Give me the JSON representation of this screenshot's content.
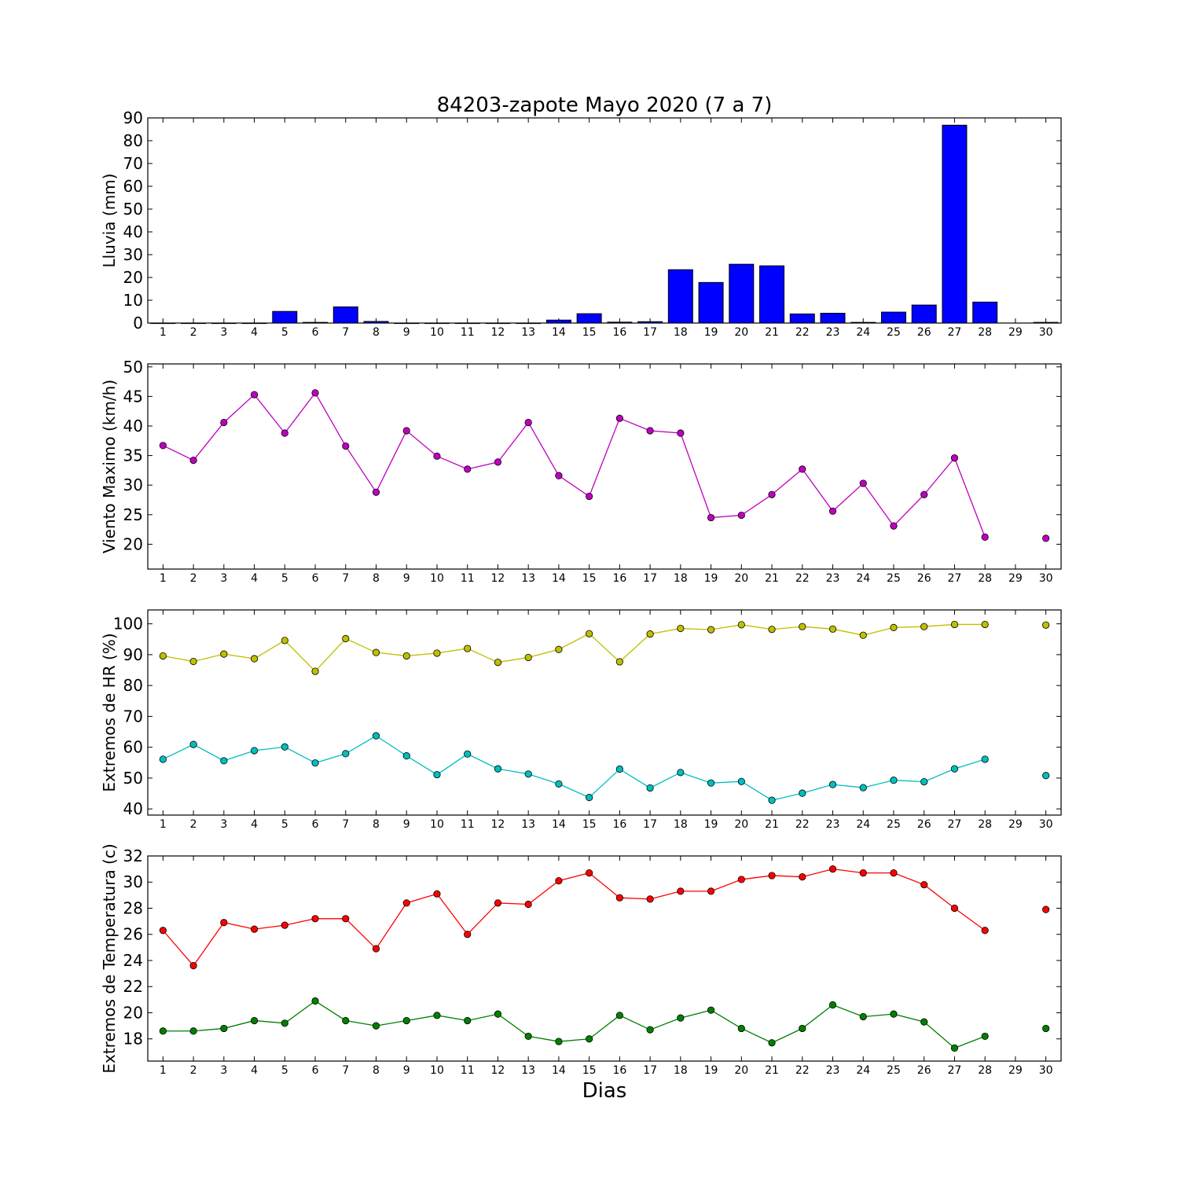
{
  "figure": {
    "title": "84203-zapote Mayo 2020  (7 a 7)",
    "xlabel": "Dias"
  },
  "chart_data": [
    {
      "type": "bar",
      "ylabel": "Lluvia (mm)",
      "ylim": [
        0,
        90
      ],
      "yticks": [
        0,
        10,
        20,
        30,
        40,
        50,
        60,
        70,
        80,
        90
      ],
      "x": [
        1,
        2,
        3,
        4,
        5,
        6,
        7,
        8,
        9,
        10,
        11,
        12,
        13,
        14,
        15,
        16,
        17,
        18,
        19,
        20,
        21,
        22,
        23,
        24,
        25,
        26,
        27,
        28,
        29,
        30
      ],
      "xticklabels": [
        "1",
        "2",
        "3",
        "4",
        "5",
        "6",
        "7",
        "8",
        "9",
        "10",
        "11",
        "12",
        "13",
        "14",
        "15",
        "16",
        "17",
        "18",
        "19",
        "20",
        "21",
        "22",
        "23",
        "24",
        "25",
        "26",
        "27",
        "28",
        "29",
        "30"
      ],
      "xlim": [
        0.5,
        30.5
      ],
      "color": "#0000ff",
      "values": [
        0,
        0,
        0,
        0,
        5.1,
        0.3,
        7.1,
        0.7,
        0,
        0,
        0,
        0,
        0,
        1.3,
        4.1,
        0.4,
        0.6,
        23.4,
        17.8,
        25.8,
        25.1,
        4.0,
        4.3,
        0.3,
        4.8,
        7.9,
        86.8,
        9.2,
        null,
        0.3
      ]
    },
    {
      "type": "line",
      "ylabel": "Viento Maximo (km/h)",
      "ylim": [
        15.8,
        50.5
      ],
      "yticks": [
        20,
        25,
        30,
        35,
        40,
        45,
        50
      ],
      "x": [
        1,
        2,
        3,
        4,
        5,
        6,
        7,
        8,
        9,
        10,
        11,
        12,
        13,
        14,
        15,
        16,
        17,
        18,
        19,
        20,
        21,
        22,
        23,
        24,
        25,
        26,
        27,
        28,
        29,
        30
      ],
      "xticklabels": [
        "1",
        "2",
        "3",
        "4",
        "5",
        "6",
        "7",
        "8",
        "9",
        "10",
        "11",
        "12",
        "13",
        "14",
        "15",
        "16",
        "17",
        "18",
        "19",
        "20",
        "21",
        "22",
        "23",
        "24",
        "25",
        "26",
        "27",
        "28",
        "29",
        "30"
      ],
      "xlim": [
        0.5,
        30.5
      ],
      "series": [
        {
          "color": "#bf00bf",
          "values": [
            36.7,
            34.2,
            40.6,
            45.3,
            38.8,
            45.6,
            36.6,
            28.8,
            39.2,
            34.9,
            32.7,
            33.9,
            40.6,
            31.6,
            28.1,
            41.3,
            39.2,
            38.8,
            24.5,
            24.9,
            28.4,
            32.7,
            25.6,
            30.3,
            23.1,
            28.4,
            34.6,
            21.2,
            null,
            21.0
          ]
        }
      ]
    },
    {
      "type": "line",
      "ylabel": "Extremos de HR (%)",
      "ylim": [
        38,
        104.5
      ],
      "yticks": [
        40,
        50,
        60,
        70,
        80,
        90,
        100
      ],
      "x": [
        1,
        2,
        3,
        4,
        5,
        6,
        7,
        8,
        9,
        10,
        11,
        12,
        13,
        14,
        15,
        16,
        17,
        18,
        19,
        20,
        21,
        22,
        23,
        24,
        25,
        26,
        27,
        28,
        29,
        30
      ],
      "xticklabels": [
        "1",
        "2",
        "3",
        "4",
        "5",
        "6",
        "7",
        "8",
        "9",
        "10",
        "11",
        "12",
        "13",
        "14",
        "15",
        "16",
        "17",
        "18",
        "19",
        "20",
        "21",
        "22",
        "23",
        "24",
        "25",
        "26",
        "27",
        "28",
        "29",
        "30"
      ],
      "xlim": [
        0.5,
        30.5
      ],
      "series": [
        {
          "color": "#bfbf00",
          "values": [
            89.6,
            87.8,
            90.2,
            88.7,
            94.6,
            84.6,
            95.2,
            90.7,
            89.6,
            90.5,
            92.0,
            87.5,
            89.1,
            91.7,
            96.8,
            87.7,
            96.7,
            98.5,
            98.1,
            99.7,
            98.2,
            99.1,
            98.3,
            96.3,
            98.8,
            99.1,
            99.8,
            99.8,
            null,
            99.6
          ]
        },
        {
          "color": "#00bfbf",
          "values": [
            56.1,
            60.9,
            55.6,
            58.9,
            60.1,
            54.9,
            57.9,
            63.7,
            57.2,
            51.1,
            57.8,
            53.0,
            51.3,
            48.1,
            43.7,
            52.9,
            46.8,
            51.8,
            48.4,
            48.9,
            42.8,
            45.1,
            47.9,
            46.9,
            49.3,
            48.8,
            53.0,
            56.1,
            null,
            50.8
          ]
        }
      ]
    },
    {
      "type": "line",
      "ylabel": "Extremos de Temperatura (c)",
      "ylim": [
        16.3,
        32
      ],
      "yticks": [
        18,
        20,
        22,
        24,
        26,
        28,
        30,
        32
      ],
      "x": [
        1,
        2,
        3,
        4,
        5,
        6,
        7,
        8,
        9,
        10,
        11,
        12,
        13,
        14,
        15,
        16,
        17,
        18,
        19,
        20,
        21,
        22,
        23,
        24,
        25,
        26,
        27,
        28,
        29,
        30
      ],
      "xticklabels": [
        "1",
        "2",
        "3",
        "4",
        "5",
        "6",
        "7",
        "8",
        "9",
        "10",
        "11",
        "12",
        "13",
        "14",
        "15",
        "16",
        "17",
        "18",
        "19",
        "20",
        "21",
        "22",
        "23",
        "24",
        "25",
        "26",
        "27",
        "28",
        "29",
        "30"
      ],
      "xlim": [
        0.5,
        30.5
      ],
      "series": [
        {
          "color": "#ff0000",
          "values": [
            26.3,
            23.6,
            26.9,
            26.4,
            26.7,
            27.2,
            27.2,
            24.9,
            28.4,
            29.1,
            26.0,
            28.4,
            28.3,
            30.1,
            30.7,
            28.8,
            28.7,
            29.3,
            29.3,
            30.2,
            30.5,
            30.4,
            31.0,
            30.7,
            30.7,
            29.8,
            28.0,
            26.3,
            null,
            27.9
          ]
        },
        {
          "color": "#008000",
          "values": [
            18.6,
            18.6,
            18.8,
            19.4,
            19.2,
            20.9,
            19.4,
            19.0,
            19.4,
            19.8,
            19.4,
            19.9,
            18.2,
            17.8,
            18.0,
            19.8,
            18.7,
            19.6,
            20.2,
            18.8,
            17.7,
            18.8,
            20.6,
            19.7,
            19.9,
            19.3,
            17.3,
            18.2,
            null,
            18.8
          ]
        }
      ]
    }
  ]
}
